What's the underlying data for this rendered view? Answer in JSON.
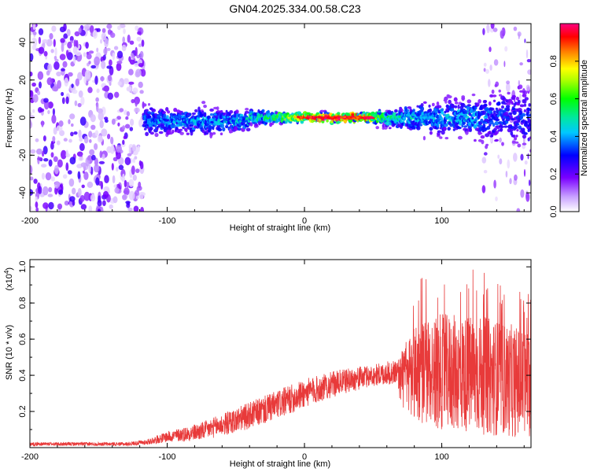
{
  "title": "GN04.2025.334.00.58.C23",
  "colors": {
    "snr_line": "#e83a3a",
    "axis": "#000000",
    "background": "#ffffff"
  },
  "chart_data": [
    {
      "type": "heatmap",
      "name": "spectrogram",
      "xlabel": "Height of straight line (km)",
      "ylabel": "Frequency (Hz)",
      "xlim": [
        -200,
        165
      ],
      "ylim": [
        -50,
        50
      ],
      "x_ticks": [
        -200,
        -100,
        0,
        100
      ],
      "x_tick_labels": [
        "-200",
        "-100",
        "0",
        "100"
      ],
      "y_ticks": [
        -40,
        -20,
        0,
        20,
        40
      ],
      "y_tick_labels": [
        "-40",
        "-20",
        "0",
        "20",
        "40"
      ],
      "noise_region_x": [
        -200,
        -117
      ],
      "signal_band": {
        "x_start": -117,
        "x_end": 165,
        "center_freq_hz": 0,
        "band_profile": [
          {
            "x": -117,
            "half_width_hz": 6,
            "peak_amp": 0.35
          },
          {
            "x": -90,
            "half_width_hz": 5,
            "peak_amp": 0.4
          },
          {
            "x": -60,
            "half_width_hz": 5,
            "peak_amp": 0.4
          },
          {
            "x": -40,
            "half_width_hz": 3,
            "peak_amp": 0.45
          },
          {
            "x": -20,
            "half_width_hz": 2,
            "peak_amp": 0.6
          },
          {
            "x": 0,
            "half_width_hz": 1.5,
            "peak_amp": 0.8
          },
          {
            "x": 20,
            "half_width_hz": 1.5,
            "peak_amp": 1.0
          },
          {
            "x": 40,
            "half_width_hz": 1.5,
            "peak_amp": 0.9
          },
          {
            "x": 60,
            "half_width_hz": 3,
            "peak_amp": 0.5
          },
          {
            "x": 90,
            "half_width_hz": 6,
            "peak_amp": 0.4
          },
          {
            "x": 120,
            "half_width_hz": 7,
            "peak_amp": 0.4
          },
          {
            "x": 150,
            "half_width_hz": 12,
            "peak_amp": 0.3
          },
          {
            "x": 165,
            "half_width_hz": 14,
            "peak_amp": 0.3
          }
        ]
      },
      "colorbar": {
        "label": "Normalized spectral amplitude",
        "range": [
          0.0,
          1.0
        ],
        "ticks": [
          0.0,
          0.2,
          0.4,
          0.6,
          0.8
        ],
        "tick_labels": [
          "0.0",
          "0.2",
          "0.4",
          "0.6",
          "0.8"
        ]
      }
    },
    {
      "type": "line",
      "name": "snr",
      "xlabel": "Height of straight line (km)",
      "ylabel": "SNR (10 * v/v)",
      "y_multiplier_base": "(x10",
      "y_multiplier_exp": "4",
      "y_multiplier_close": ")",
      "xlim": [
        -200,
        165
      ],
      "ylim": [
        0,
        1.04
      ],
      "x_ticks": [
        -200,
        -100,
        0,
        100
      ],
      "x_tick_labels": [
        "-200",
        "-100",
        "0",
        "100"
      ],
      "y_ticks": [
        0.2,
        0.4,
        0.6,
        0.8,
        1.0
      ],
      "y_tick_labels": [
        "0.2",
        "0.4",
        "0.6",
        "0.8",
        "1.0"
      ],
      "series": [
        {
          "name": "SNR",
          "envelope": [
            {
              "x": -200,
              "mean": 0.02,
              "spread": 0.01
            },
            {
              "x": -130,
              "mean": 0.02,
              "spread": 0.01
            },
            {
              "x": -115,
              "mean": 0.03,
              "spread": 0.015
            },
            {
              "x": -100,
              "mean": 0.06,
              "spread": 0.03
            },
            {
              "x": -75,
              "mean": 0.09,
              "spread": 0.05
            },
            {
              "x": -50,
              "mean": 0.15,
              "spread": 0.07
            },
            {
              "x": -25,
              "mean": 0.22,
              "spread": 0.08
            },
            {
              "x": 0,
              "mean": 0.3,
              "spread": 0.08
            },
            {
              "x": 25,
              "mean": 0.36,
              "spread": 0.07
            },
            {
              "x": 50,
              "mean": 0.4,
              "spread": 0.06
            },
            {
              "x": 68,
              "mean": 0.42,
              "spread": 0.07
            },
            {
              "x": 70,
              "mean": 0.38,
              "spread": 0.15
            },
            {
              "x": 80,
              "mean": 0.42,
              "spread": 0.28
            },
            {
              "x": 100,
              "mean": 0.42,
              "spread": 0.32
            },
            {
              "x": 130,
              "mean": 0.4,
              "spread": 0.33
            },
            {
              "x": 165,
              "mean": 0.35,
              "spread": 0.3
            }
          ]
        }
      ]
    }
  ]
}
